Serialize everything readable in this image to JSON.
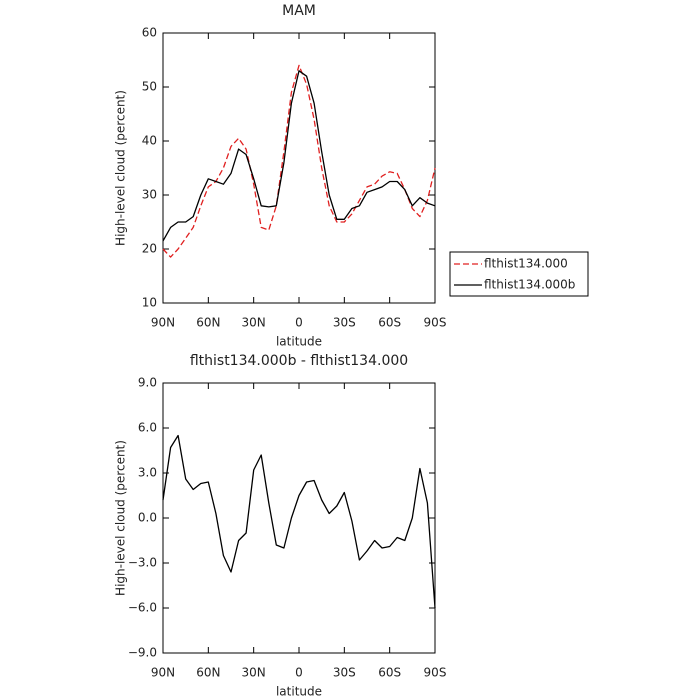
{
  "chart_data": [
    {
      "type": "line",
      "title": "MAM",
      "xlabel": "latitude",
      "ylabel": "High-level cloud (percent)",
      "x": [
        90,
        85,
        80,
        75,
        70,
        65,
        60,
        55,
        50,
        45,
        40,
        35,
        30,
        25,
        20,
        15,
        10,
        5,
        0,
        -5,
        -10,
        -15,
        -20,
        -25,
        -30,
        -35,
        -40,
        -45,
        -50,
        -55,
        -60,
        -65,
        -70,
        -75,
        -80,
        -85,
        -90
      ],
      "xlim": [
        90,
        -90
      ],
      "xticks": [
        {
          "value": 90,
          "label": "90N"
        },
        {
          "value": 60,
          "label": "60N"
        },
        {
          "value": 30,
          "label": "30N"
        },
        0,
        {
          "value": -30,
          "label": "30S"
        },
        {
          "value": -60,
          "label": "60S"
        },
        {
          "value": -90,
          "label": "90S"
        }
      ],
      "ylim": [
        10,
        60
      ],
      "yticks": [
        10,
        20,
        30,
        40,
        50,
        60
      ],
      "legend": "right",
      "series": [
        {
          "name": "flthist134.000",
          "color": "#e02020",
          "line_style": "dashed",
          "values": [
            20,
            18.5,
            20,
            22,
            24,
            28,
            31.5,
            32.5,
            35,
            39,
            40.5,
            38.5,
            32,
            24,
            23.5,
            28,
            38,
            49,
            54,
            50.5,
            44,
            35,
            28,
            25,
            25,
            26.5,
            29,
            31.5,
            32,
            33.5,
            34.3,
            34,
            31,
            27.5,
            26,
            29,
            35
          ]
        },
        {
          "name": "flthist134.000b",
          "color": "#000000",
          "line_style": "solid",
          "values": [
            21.5,
            24,
            25,
            25,
            26,
            30,
            33,
            32.5,
            32,
            34,
            38.5,
            37.5,
            33,
            28,
            27.8,
            28,
            36,
            47,
            53,
            52,
            47,
            38,
            30,
            25.5,
            25.5,
            27.5,
            28,
            30.5,
            31,
            31.5,
            32.5,
            32.5,
            31,
            28,
            29.5,
            28.5,
            28
          ]
        }
      ]
    },
    {
      "type": "line",
      "title": "flthist134.000b - flthist134.000",
      "xlabel": "latitude",
      "ylabel": "High-level cloud (percent)",
      "x": [
        90,
        85,
        80,
        75,
        70,
        65,
        60,
        55,
        50,
        45,
        40,
        35,
        30,
        25,
        20,
        15,
        10,
        5,
        0,
        -5,
        -10,
        -15,
        -20,
        -25,
        -30,
        -35,
        -40,
        -45,
        -50,
        -55,
        -60,
        -65,
        -70,
        -75,
        -80,
        -85,
        -90
      ],
      "xlim": [
        90,
        -90
      ],
      "xticks": [
        {
          "value": 90,
          "label": "90N"
        },
        {
          "value": 60,
          "label": "60N"
        },
        {
          "value": 30,
          "label": "30N"
        },
        0,
        {
          "value": -30,
          "label": "30S"
        },
        {
          "value": -60,
          "label": "60S"
        },
        {
          "value": -90,
          "label": "90S"
        }
      ],
      "ylim": [
        -9,
        9
      ],
      "yticks": [
        {
          "value": -9,
          "label": "−9.0"
        },
        {
          "value": -6,
          "label": "−6.0"
        },
        {
          "value": -3,
          "label": "−3.0"
        },
        {
          "value": 0,
          "label": "0.0"
        },
        {
          "value": 3,
          "label": "3.0"
        },
        {
          "value": 6,
          "label": "6.0"
        },
        {
          "value": 9,
          "label": "9.0"
        }
      ],
      "series": [
        {
          "color": "#000000",
          "line_style": "solid",
          "values": [
            1.2,
            4.7,
            5.5,
            2.6,
            1.9,
            2.3,
            2.4,
            0.3,
            -2.5,
            -3.6,
            -1.5,
            -1.0,
            3.2,
            4.2,
            1.0,
            -1.8,
            -2.0,
            0,
            1.5,
            2.4,
            2.5,
            1.2,
            0.3,
            0.8,
            1.7,
            -0.2,
            -2.8,
            -2.2,
            -1.5,
            -2.0,
            -1.9,
            -1.3,
            -1.5,
            0,
            3.3,
            1.0,
            -6.0
          ]
        }
      ]
    }
  ]
}
